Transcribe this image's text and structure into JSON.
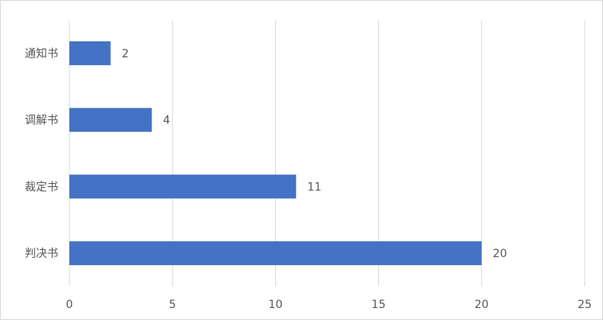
{
  "chart_data": {
    "type": "bar",
    "orientation": "horizontal",
    "categories": [
      "通知书",
      "调解书",
      "裁定书",
      "判决书"
    ],
    "values": [
      2,
      4,
      11,
      20
    ],
    "color": "#4472c4",
    "xlim": [
      0,
      25
    ],
    "xticks": [
      0,
      5,
      10,
      15,
      20,
      25
    ],
    "grid": true,
    "data_labels": true
  }
}
